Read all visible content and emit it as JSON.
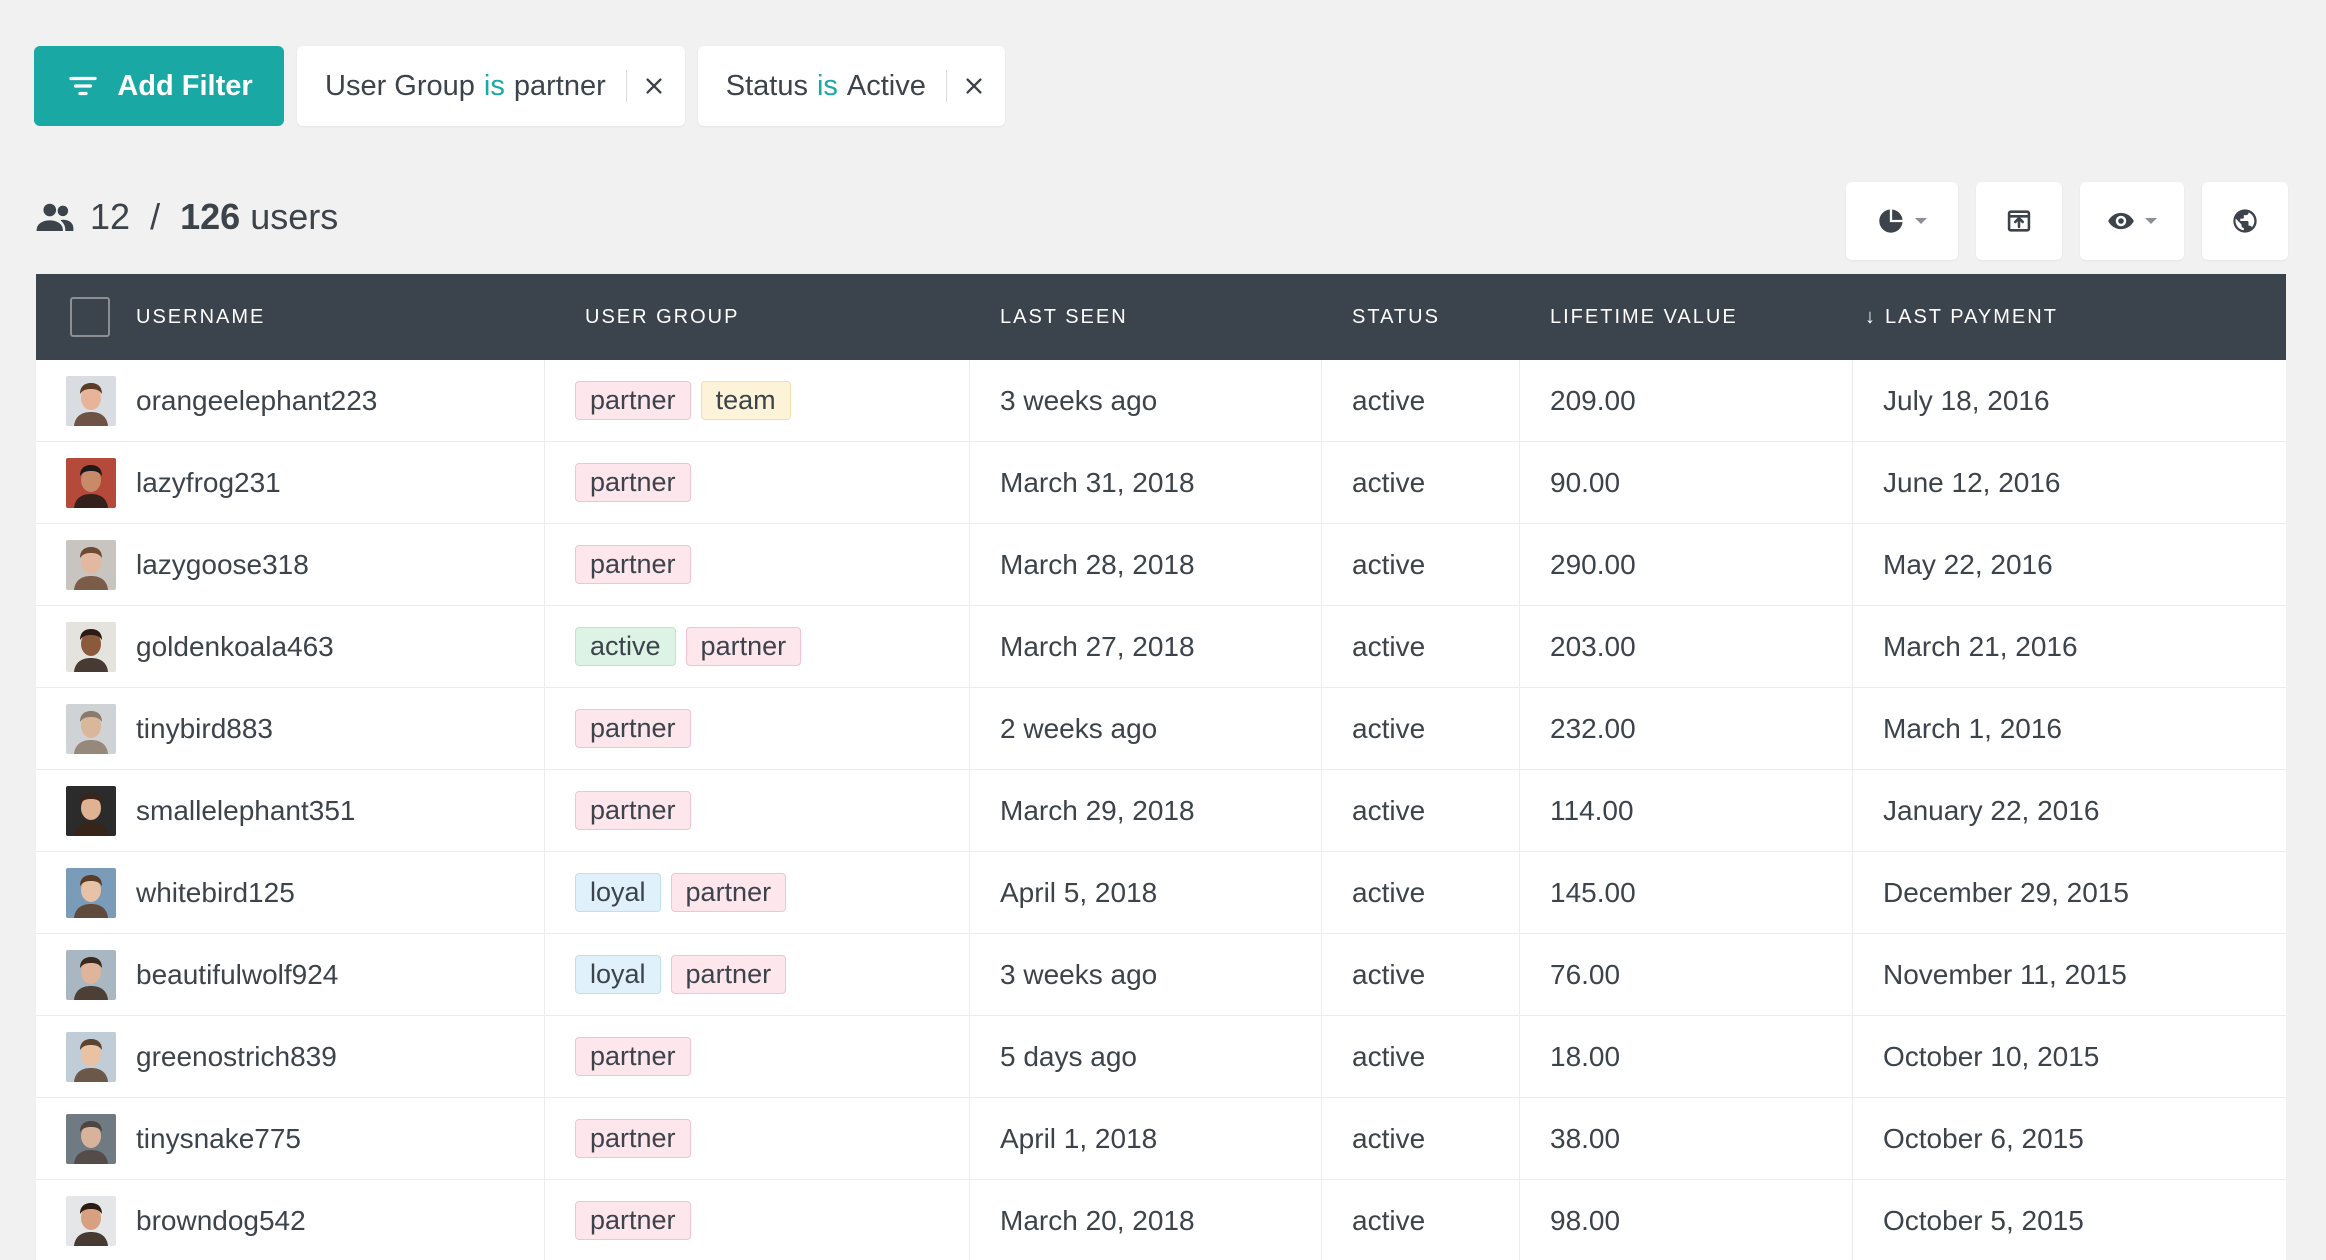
{
  "filters": {
    "add_label": "Add Filter",
    "chips": [
      {
        "field": "User Group",
        "op": "is",
        "value": "partner"
      },
      {
        "field": "Status",
        "op": "is",
        "value": "Active"
      }
    ]
  },
  "summary": {
    "shown": "12",
    "separator": "/",
    "total": "126",
    "unit": "users"
  },
  "toolbar": [
    "pie-chart-icon",
    "export-icon",
    "eye-icon",
    "globe-icon"
  ],
  "colors": {
    "accent": "#1aa8a4",
    "header_bg": "#3b434c"
  },
  "table": {
    "columns": {
      "username": "USERNAME",
      "user_group": "USER GROUP",
      "last_seen": "LAST SEEN",
      "status": "STATUS",
      "lifetime_value": "LIFETIME VALUE",
      "last_payment": "LAST PAYMENT"
    },
    "sort_indicator": "↓",
    "rows": [
      {
        "username": "orangeelephant223",
        "groups": [
          "partner",
          "team"
        ],
        "last_seen": "3 weeks ago",
        "status": "active",
        "ltv": "209.00",
        "last_payment": "July 18, 2016"
      },
      {
        "username": "lazyfrog231",
        "groups": [
          "partner"
        ],
        "last_seen": "March 31, 2018",
        "status": "active",
        "ltv": "90.00",
        "last_payment": "June 12, 2016"
      },
      {
        "username": "lazygoose318",
        "groups": [
          "partner"
        ],
        "last_seen": "March 28, 2018",
        "status": "active",
        "ltv": "290.00",
        "last_payment": "May 22, 2016"
      },
      {
        "username": "goldenkoala463",
        "groups": [
          "active",
          "partner"
        ],
        "last_seen": "March 27, 2018",
        "status": "active",
        "ltv": "203.00",
        "last_payment": "March 21, 2016"
      },
      {
        "username": "tinybird883",
        "groups": [
          "partner"
        ],
        "last_seen": "2 weeks ago",
        "status": "active",
        "ltv": "232.00",
        "last_payment": "March 1, 2016"
      },
      {
        "username": "smallelephant351",
        "groups": [
          "partner"
        ],
        "last_seen": "March 29, 2018",
        "status": "active",
        "ltv": "114.00",
        "last_payment": "January 22, 2016"
      },
      {
        "username": "whitebird125",
        "groups": [
          "loyal",
          "partner"
        ],
        "last_seen": "April 5, 2018",
        "status": "active",
        "ltv": "145.00",
        "last_payment": "December 29, 2015"
      },
      {
        "username": "beautifulwolf924",
        "groups": [
          "loyal",
          "partner"
        ],
        "last_seen": "3 weeks ago",
        "status": "active",
        "ltv": "76.00",
        "last_payment": "November 11, 2015"
      },
      {
        "username": "greenostrich839",
        "groups": [
          "partner"
        ],
        "last_seen": "5 days ago",
        "status": "active",
        "ltv": "18.00",
        "last_payment": "October 10, 2015"
      },
      {
        "username": "tinysnake775",
        "groups": [
          "partner"
        ],
        "last_seen": "April 1, 2018",
        "status": "active",
        "ltv": "38.00",
        "last_payment": "October 6, 2015"
      },
      {
        "username": "browndog542",
        "groups": [
          "partner"
        ],
        "last_seen": "March 20, 2018",
        "status": "active",
        "ltv": "98.00",
        "last_payment": "October 5, 2015"
      }
    ]
  }
}
